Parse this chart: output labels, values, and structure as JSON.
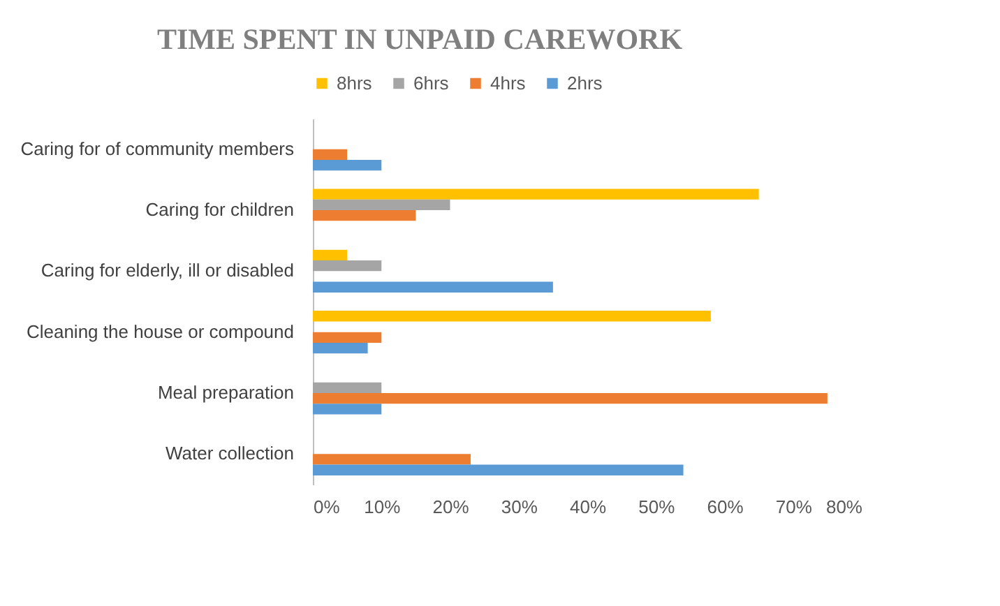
{
  "chart_data": {
    "type": "bar",
    "orientation": "horizontal",
    "title": "TIME SPENT IN UNPAID CAREWORK",
    "categories": [
      "Caring for of community members",
      "Caring for children",
      "Caring for elderly, ill or disabled",
      "Cleaning the house or compound",
      "Meal preparation",
      "Water collection"
    ],
    "series": [
      {
        "name": "8hrs",
        "color": "#ffc000",
        "values": [
          null,
          65,
          5,
          58,
          null,
          null
        ]
      },
      {
        "name": "6hrs",
        "color": "#a5a5a5",
        "values": [
          null,
          20,
          10,
          null,
          10,
          null
        ]
      },
      {
        "name": "4hrs",
        "color": "#ed7d31",
        "values": [
          5,
          15,
          null,
          10,
          75,
          23
        ]
      },
      {
        "name": "2hrs",
        "color": "#5b9bd5",
        "values": [
          10,
          null,
          35,
          8,
          10,
          54
        ]
      }
    ],
    "xlim": [
      0,
      80
    ],
    "xticks": [
      {
        "value": 0,
        "label": "0%"
      },
      {
        "value": 10,
        "label": "10%"
      },
      {
        "value": 20,
        "label": "20%"
      },
      {
        "value": 30,
        "label": "30%"
      },
      {
        "value": 40,
        "label": "40%"
      },
      {
        "value": 50,
        "label": "50%"
      },
      {
        "value": 60,
        "label": "60%"
      },
      {
        "value": 70,
        "label": "70%"
      },
      {
        "value": 80,
        "label": "80%"
      }
    ],
    "grid": false,
    "legend": "top"
  }
}
